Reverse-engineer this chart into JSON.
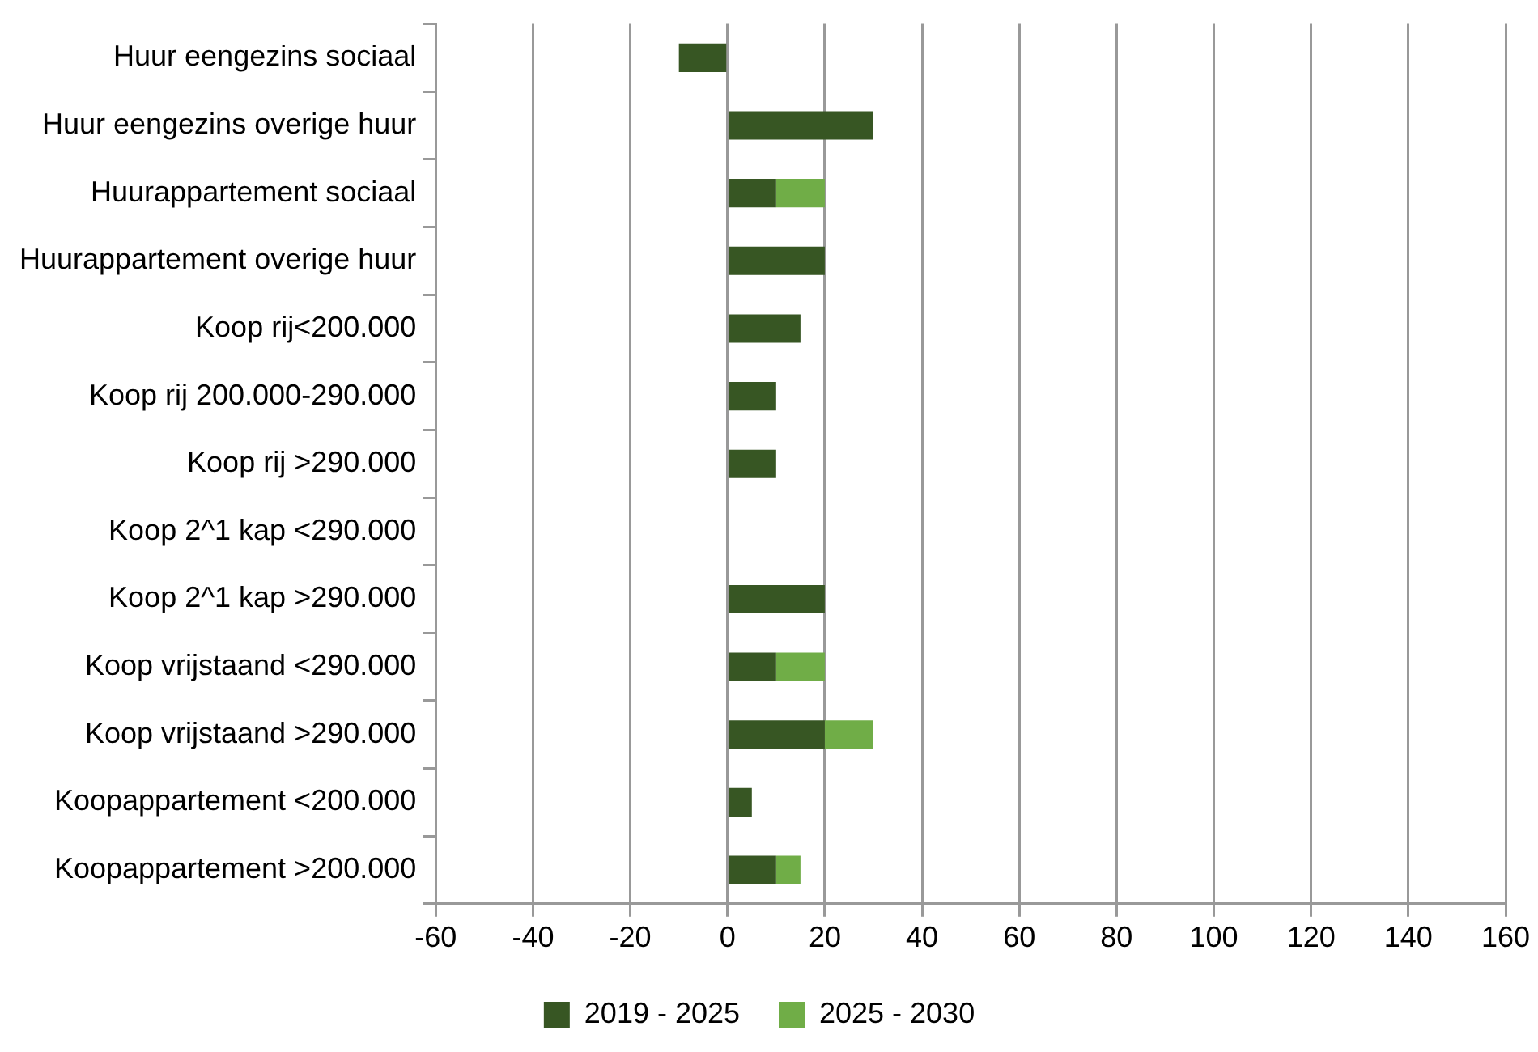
{
  "chart_data": {
    "type": "bar",
    "orientation": "horizontal",
    "stacked": true,
    "categories": [
      "Huur eengezins sociaal",
      "Huur eengezins overige huur",
      "Huurappartement sociaal",
      "Huurappartement overige huur",
      "Koop rij<200.000",
      "Koop rij 200.000-290.000",
      "Koop rij >290.000",
      "Koop 2^1 kap <290.000",
      "Koop 2^1 kap >290.000",
      "Koop vrijstaand <290.000",
      "Koop vrijstaand >290.000",
      "Koopappartement <200.000",
      "Koopappartement >200.000"
    ],
    "series": [
      {
        "name": "2019 - 2025",
        "color": "#375623",
        "values": [
          -10,
          30,
          10,
          20,
          15,
          10,
          10,
          null,
          20,
          10,
          20,
          5,
          10
        ]
      },
      {
        "name": "2025 - 2030",
        "color": "#70ad47",
        "values": [
          null,
          null,
          10,
          null,
          null,
          null,
          null,
          null,
          null,
          10,
          10,
          null,
          5
        ]
      }
    ],
    "xlim": [
      -60,
      160
    ],
    "xticks": [
      -60,
      -40,
      -20,
      0,
      20,
      40,
      60,
      80,
      100,
      120,
      140,
      160
    ],
    "grid": "x",
    "legend": "bottom"
  }
}
